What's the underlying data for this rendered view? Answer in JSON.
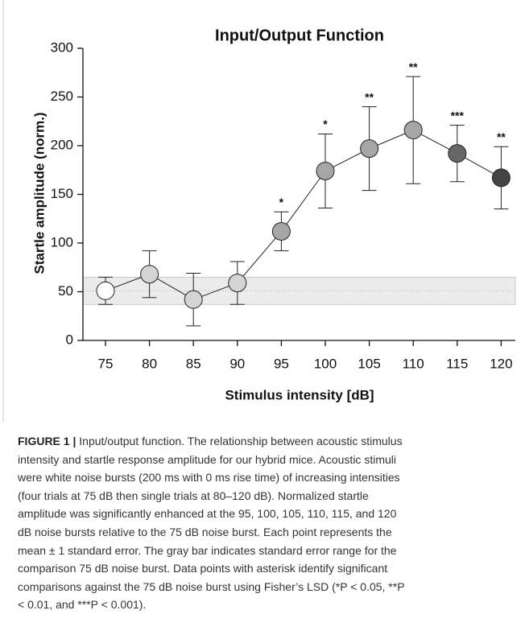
{
  "chart_data": {
    "type": "line",
    "title": "Input/Output Function",
    "xlabel": "Stimulus intensity [dB]",
    "ylabel": "Startle amplitude (norm.)",
    "categories": [
      "75",
      "80",
      "85",
      "90",
      "95",
      "100",
      "105",
      "110",
      "115",
      "120"
    ],
    "values": [
      51,
      68,
      42,
      59,
      112,
      174,
      197,
      216,
      192,
      167
    ],
    "errors": [
      14,
      24,
      27,
      22,
      20,
      38,
      43,
      55,
      29,
      32
    ],
    "annotations": [
      null,
      null,
      null,
      null,
      "*",
      "*",
      "**",
      "**",
      "***",
      "**"
    ],
    "point_colors": [
      "#ffffff",
      "#d4d4d4",
      "#d4d4d4",
      "#d4d4d4",
      "#a6a6a6",
      "#a6a6a6",
      "#a6a6a6",
      "#a6a6a6",
      "#666666",
      "#444444"
    ],
    "line_color": "#222222",
    "band": [
      37,
      65
    ],
    "band_color": "#ececec",
    "ylim": [
      0,
      300
    ],
    "yticks": [
      0,
      50,
      100,
      150,
      200,
      250,
      300
    ]
  },
  "caption": {
    "label": "FIGURE 1 |",
    "lines": [
      " Input/output function. The relationship between acoustic stimulus",
      "intensity and startle response amplitude for our hybrid mice. Acoustic stimuli",
      "were white noise bursts (200 ms with 0 ms rise time) of increasing intensities",
      "(four trials at 75 dB then single trials at 80–120 dB). Normalized startle",
      "amplitude was significantly enhanced at the 95, 100, 105, 110, 115, and 120",
      "dB noise bursts relative to the 75 dB noise burst. Each point represents the",
      "mean ± 1 standard error. The gray bar indicates standard error range for the",
      "comparison 75 dB noise burst. Data points with asterisk identify significant",
      "comparisons against the 75 dB noise burst using Fisher’s LSD (*P < 0.05, **P",
      "< 0.01, and ***P < 0.001)."
    ]
  }
}
